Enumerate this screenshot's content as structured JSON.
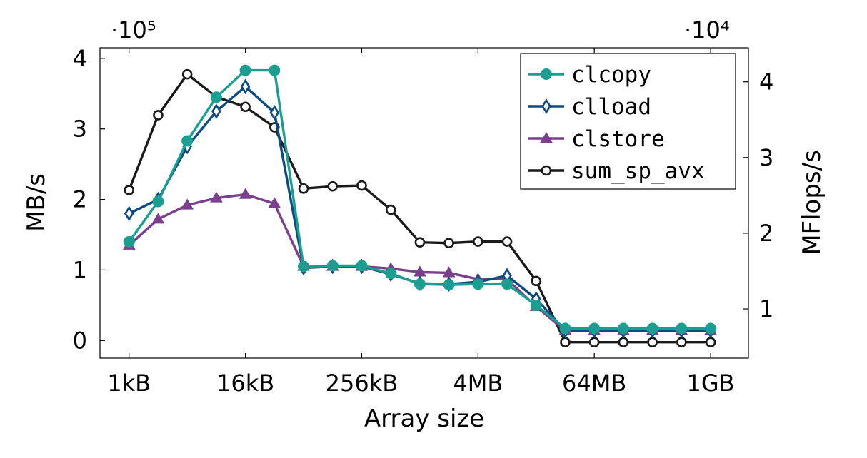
{
  "chart_data": {
    "type": "line",
    "xlabel": "Array size",
    "ylabel_left": "MB/s",
    "ylabel_right": "MFlops/s",
    "left_multiplier_label": "·10⁵",
    "right_multiplier_label": "·10⁴",
    "x_ticks": [
      {
        "log2": 10,
        "label": "1kB"
      },
      {
        "log2": 14,
        "label": "16kB"
      },
      {
        "log2": 18,
        "label": "256kB"
      },
      {
        "log2": 22,
        "label": "4MB"
      },
      {
        "log2": 26,
        "label": "64MB"
      },
      {
        "log2": 30,
        "label": "1GB"
      }
    ],
    "x_scale": "log2 of array size in bytes",
    "y_left_ticks": [
      0,
      1,
      2,
      3,
      4
    ],
    "y_left_unit": "x 10^5 MB/s",
    "y_left_range": [
      -0.25,
      4.15
    ],
    "y_right_ticks": [
      1,
      2,
      3,
      4
    ],
    "y_right_unit": "x 10^4 MFlops/s",
    "y_right_range": [
      0.35,
      4.45
    ],
    "legend_position": "top-right",
    "x": [
      10,
      11,
      12,
      13,
      14,
      15,
      16,
      17,
      18,
      19,
      20,
      21,
      22,
      23,
      24,
      25,
      26,
      27,
      28,
      29,
      30
    ],
    "series": [
      {
        "name": "clcopy",
        "axis": "left",
        "color": "#1a9e8f",
        "marker": "circle-filled",
        "values": [
          1.4,
          1.97,
          2.83,
          3.45,
          3.83,
          3.83,
          1.05,
          1.06,
          1.06,
          0.95,
          0.8,
          0.79,
          0.8,
          0.8,
          0.5,
          0.17,
          0.17,
          0.17,
          0.17,
          0.17,
          0.17
        ]
      },
      {
        "name": "clload",
        "axis": "left",
        "color": "#0e4a82",
        "marker": "diamond",
        "values": [
          1.8,
          2.0,
          2.75,
          3.25,
          3.6,
          3.23,
          1.03,
          1.05,
          1.05,
          0.94,
          0.81,
          0.8,
          0.83,
          0.92,
          0.59,
          0.14,
          0.14,
          0.14,
          0.14,
          0.14,
          0.14
        ]
      },
      {
        "name": "clstore",
        "axis": "left",
        "color": "#7b3f8e",
        "marker": "triangle",
        "values": [
          1.35,
          1.72,
          1.92,
          2.02,
          2.07,
          1.94,
          1.05,
          1.05,
          1.05,
          1.02,
          0.97,
          0.96,
          0.87,
          0.87,
          0.48,
          0.14,
          0.14,
          0.14,
          0.14,
          0.14,
          0.14
        ]
      },
      {
        "name": "sum_sp_avx",
        "axis": "right",
        "color": "#1a1a1a",
        "marker": "circle-open",
        "values": [
          2.57,
          3.56,
          4.1,
          3.8,
          3.67,
          3.4,
          2.59,
          2.62,
          2.63,
          2.31,
          1.88,
          1.87,
          1.89,
          1.89,
          1.37,
          0.56,
          0.56,
          0.56,
          0.56,
          0.56,
          0.56
        ]
      }
    ]
  }
}
